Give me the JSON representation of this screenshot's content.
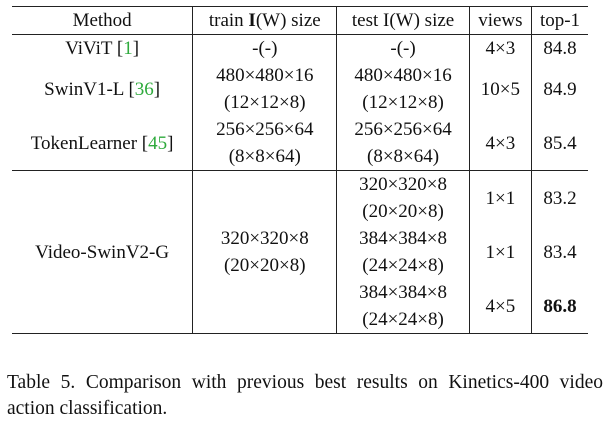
{
  "table": {
    "headers": {
      "method": "Method",
      "train_prefix": "train ",
      "train_bold": "I",
      "train_suffix": "(W) size",
      "test": "test I(W) size",
      "views": "views",
      "top1": "top-1"
    },
    "rows": [
      {
        "method": "ViViT [",
        "cite": "1",
        "close": "]",
        "train": [
          "-(-)"
        ],
        "test": [
          "-(-)"
        ],
        "views": "4×3",
        "top1": "84.8"
      },
      {
        "method": "SwinV1-L [",
        "cite": "36",
        "close": "]",
        "train": [
          "480×480×16",
          "(12×12×8)"
        ],
        "test": [
          "480×480×16",
          "(12×12×8)"
        ],
        "views": "10×5",
        "top1": "84.9"
      },
      {
        "method": "TokenLearner [",
        "cite": "45",
        "close": "]",
        "train": [
          "256×256×64",
          "(8×8×64)"
        ],
        "test": [
          "256×256×64",
          "(8×8×64)"
        ],
        "views": "4×3",
        "top1": "85.4"
      }
    ],
    "ours": {
      "method": "Video-SwinV2-G",
      "train": [
        "320×320×8",
        "(20×20×8)"
      ],
      "subrows": [
        {
          "test": [
            "320×320×8",
            "(20×20×8)"
          ],
          "views": "1×1",
          "top1": "83.2"
        },
        {
          "test": [
            "384×384×8",
            "(24×24×8)"
          ],
          "views": "1×1",
          "top1": "83.4"
        },
        {
          "test": [
            "384×384×8",
            "(24×24×8)"
          ],
          "views": "4×5",
          "top1": "86.8"
        }
      ]
    }
  },
  "caption": "Table 5. Comparison with previous best results on Kinetics-400 video action classification."
}
